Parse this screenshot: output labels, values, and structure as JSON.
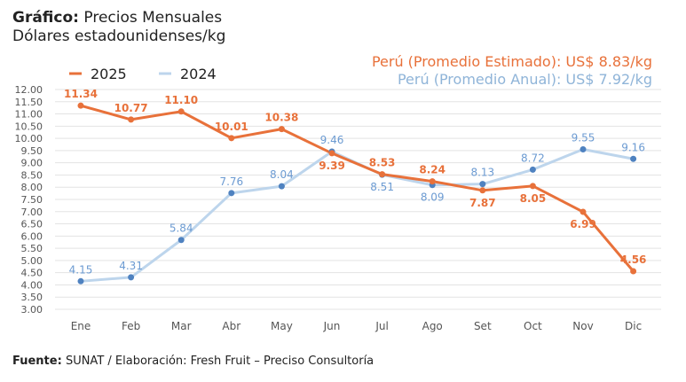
{
  "header": {
    "title_bold": "Gráfico:",
    "title": "Precios Mensuales",
    "subtitle": "Dólares estadounidenses/kg"
  },
  "averages": {
    "estimated": "Perú (Promedio Estimado): US$ 8.83/kg",
    "annual": "Perú (Promedio Anual): US$ 7.92/kg"
  },
  "footer": {
    "bold": "Fuente:",
    "text": "SUNAT / Elaboración: Fresh Fruit – Preciso Consultoría"
  },
  "chart_data": {
    "type": "line",
    "title": "Precios Mensuales",
    "ylabel": "Dólares estadounidenses/kg",
    "categories": [
      "Ene",
      "Feb",
      "Mar",
      "Abr",
      "May",
      "Jun",
      "Jul",
      "Ago",
      "Set",
      "Oct",
      "Nov",
      "Dic"
    ],
    "ylim": [
      3,
      12
    ],
    "ytick_step": 0.5,
    "grid": true,
    "legend": "top-left",
    "series": [
      {
        "name": "2025",
        "color": "#E8713A",
        "values": [
          11.34,
          10.77,
          11.1,
          10.01,
          10.38,
          9.39,
          8.53,
          8.24,
          7.87,
          8.05,
          6.99,
          4.56
        ]
      },
      {
        "name": "2024",
        "color": "#BDD5EC",
        "marker_color": "#4F82C0",
        "label_color": "#6C9BD2",
        "values": [
          4.15,
          4.31,
          5.84,
          7.76,
          8.04,
          9.46,
          8.51,
          8.09,
          8.13,
          8.72,
          9.55,
          9.16
        ]
      }
    ]
  }
}
